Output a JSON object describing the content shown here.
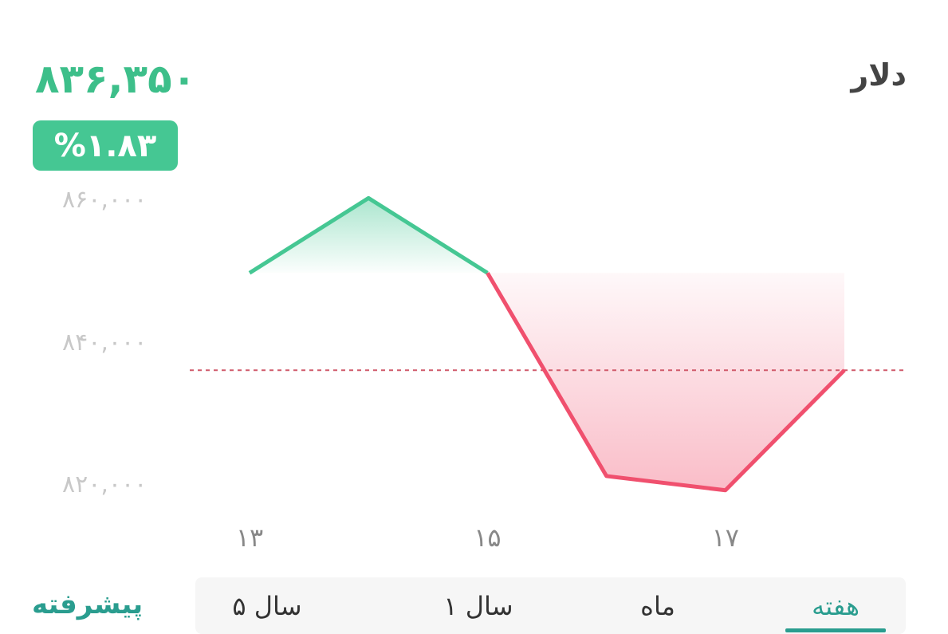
{
  "header": {
    "title": "دلار",
    "price": "۸۳۶,۳۵۰",
    "change_badge": "%۱.۸۳"
  },
  "colors": {
    "up": "#45c793",
    "down": "#f0506e",
    "accent": "#2a9d8f"
  },
  "chart_data": {
    "type": "line",
    "x": [
      13,
      14,
      15,
      16,
      17,
      18
    ],
    "values": [
      850000,
      860500,
      850000,
      821500,
      819500,
      836350
    ],
    "reference_value": 836350,
    "ylim": [
      815000,
      862000
    ],
    "y_ticks": [
      860000,
      840000,
      820000
    ],
    "y_tick_labels": [
      "۸۶۰,۰۰۰",
      "۸۴۰,۰۰۰",
      "۸۲۰,۰۰۰"
    ],
    "x_ticks": [
      13,
      15,
      17
    ],
    "x_tick_labels": [
      "۱۳",
      "۱۵",
      "۱۷"
    ]
  },
  "periods": [
    {
      "label": "هفته",
      "active": true
    },
    {
      "label": "ماه",
      "active": false
    },
    {
      "label": "۱ سال",
      "active": false
    },
    {
      "label": "۵ سال",
      "active": false
    }
  ],
  "advanced_label": "پیشرفته"
}
